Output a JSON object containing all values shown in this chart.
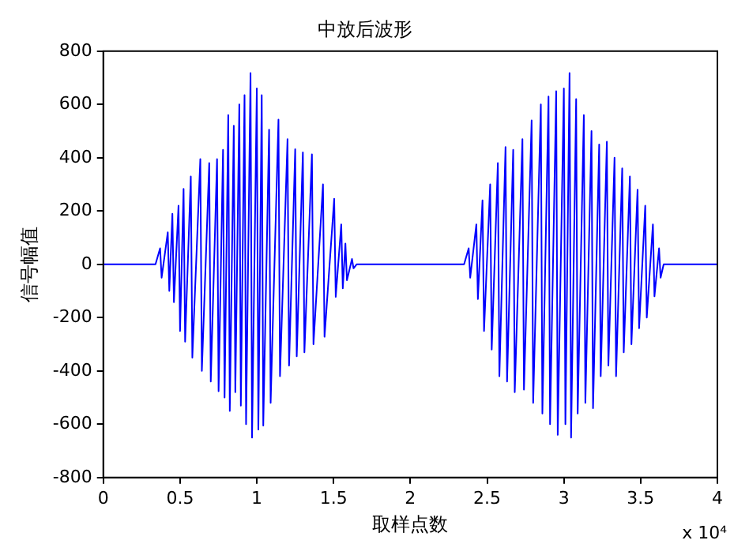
{
  "chart_data": {
    "type": "line",
    "title": "中放后波形",
    "xlabel": "取样点数",
    "ylabel": "信号幅值",
    "annotations": [
      "x 10⁴"
    ],
    "xlim": [
      0,
      4
    ],
    "ylim": [
      -800,
      800
    ],
    "xticks": [
      0,
      0.5,
      1,
      1.5,
      2,
      2.5,
      3,
      3.5,
      4
    ],
    "yticks": [
      -800,
      -600,
      -400,
      -200,
      0,
      200,
      400,
      600,
      800
    ],
    "grid": false,
    "legend": false,
    "marker": "none",
    "line_style": "solid",
    "series": [
      {
        "color": "#0000ff",
        "x": [
          0,
          0.3,
          0.34,
          0.37,
          0.38,
          0.42,
          0.43,
          0.45,
          0.46,
          0.49,
          0.5,
          0.523,
          0.533,
          0.57,
          0.58,
          0.632,
          0.642,
          0.69,
          0.7,
          0.741,
          0.751,
          0.78,
          0.79,
          0.814,
          0.824,
          0.85,
          0.86,
          0.886,
          0.896,
          0.92,
          0.93,
          0.959,
          0.969,
          1,
          1.01,
          1.032,
          1.042,
          1.08,
          1.09,
          1.141,
          1.151,
          1.2,
          1.21,
          1.25,
          1.26,
          1.3,
          1.31,
          1.359,
          1.369,
          1.431,
          1.441,
          1.504,
          1.514,
          1.55,
          1.56,
          1.577,
          1.587,
          1.62,
          1.63,
          1.65,
          2.35,
          2.38,
          2.39,
          2.43,
          2.44,
          2.47,
          2.48,
          2.52,
          2.53,
          2.57,
          2.58,
          2.62,
          2.63,
          2.67,
          2.68,
          2.73,
          2.74,
          2.79,
          2.8,
          2.85,
          2.86,
          2.9,
          2.91,
          2.95,
          2.96,
          3,
          3.01,
          3.037,
          3.047,
          3.08,
          3.09,
          3.13,
          3.14,
          3.18,
          3.19,
          3.23,
          3.24,
          3.28,
          3.29,
          3.33,
          3.34,
          3.38,
          3.39,
          3.43,
          3.44,
          3.48,
          3.49,
          3.53,
          3.54,
          3.58,
          3.59,
          3.62,
          3.63,
          3.65,
          4
        ],
        "values": [
          0,
          0,
          0,
          60,
          -50,
          120,
          -100,
          190,
          -142,
          220,
          -250,
          283,
          -290,
          330,
          -350,
          395,
          -400,
          380,
          -440,
          395,
          -476,
          430,
          -500,
          560,
          -550,
          520,
          -480,
          600,
          -530,
          635,
          -600,
          718,
          -650,
          660,
          -620,
          635,
          -605,
          505,
          -520,
          543,
          -420,
          470,
          -380,
          432,
          -345,
          420,
          -330,
          413,
          -300,
          300,
          -272,
          246,
          -122,
          150,
          -90,
          78,
          -60,
          20,
          -15,
          0,
          0,
          60,
          -50,
          150,
          -130,
          240,
          -250,
          300,
          -320,
          380,
          -420,
          440,
          -440,
          430,
          -480,
          470,
          -470,
          540,
          -520,
          600,
          -560,
          630,
          -600,
          650,
          -640,
          660,
          -600,
          718,
          -650,
          620,
          -560,
          560,
          -520,
          500,
          -540,
          450,
          -420,
          460,
          -380,
          400,
          -420,
          360,
          -330,
          330,
          -300,
          280,
          -240,
          220,
          -200,
          150,
          -120,
          60,
          -50,
          0,
          0
        ]
      }
    ]
  }
}
